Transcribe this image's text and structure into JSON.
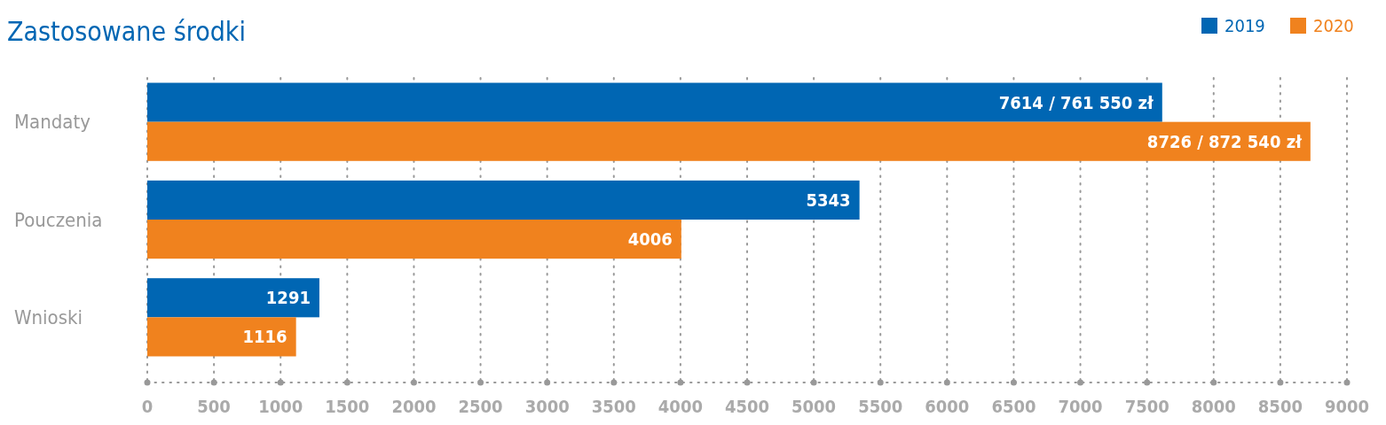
{
  "chart_data": {
    "type": "bar",
    "orientation": "horizontal",
    "title": "Zastosowane środki",
    "categories": [
      "Mandaty",
      "Pouczenia",
      "Wnioski"
    ],
    "series": [
      {
        "name": "2019",
        "color": "#0066b3",
        "values": [
          7614,
          5343,
          1291
        ],
        "value_labels": [
          "7614 / 761 550 zł",
          "5343",
          "1291"
        ]
      },
      {
        "name": "2020",
        "color": "#f0821e",
        "values": [
          8726,
          4006,
          1116
        ],
        "value_labels": [
          "8726 / 872 540 zł",
          "4006",
          "1116"
        ]
      }
    ],
    "xlim": [
      0,
      9000
    ],
    "xticks": [
      0,
      500,
      1000,
      1500,
      2000,
      2500,
      3000,
      3500,
      4000,
      4500,
      5000,
      5500,
      6000,
      6500,
      7000,
      7500,
      8000,
      8500,
      9000
    ],
    "grid": "x",
    "legend": "top right"
  }
}
